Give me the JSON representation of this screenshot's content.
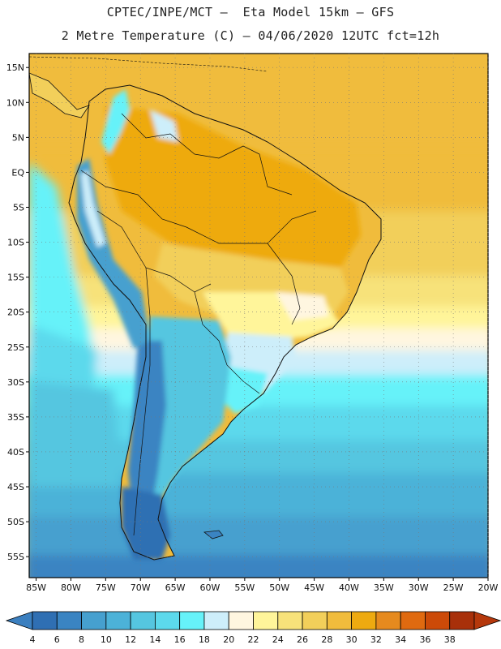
{
  "header": {
    "line1": "CPTEC/INPE/MCT –  Eta Model 15km – GFS",
    "line2": "2 Metre Temperature (C) – 04/06/2020 12UTC fct=12h"
  },
  "map": {
    "lon_range": [
      -86,
      -20
    ],
    "lat_range": [
      -58,
      17
    ],
    "lat_ticks": [
      {
        "v": 15,
        "label": "15N"
      },
      {
        "v": 10,
        "label": "10N"
      },
      {
        "v": 5,
        "label": "5N"
      },
      {
        "v": 0,
        "label": "EQ"
      },
      {
        "v": -5,
        "label": "5S"
      },
      {
        "v": -10,
        "label": "10S"
      },
      {
        "v": -15,
        "label": "15S"
      },
      {
        "v": -20,
        "label": "20S"
      },
      {
        "v": -25,
        "label": "25S"
      },
      {
        "v": -30,
        "label": "30S"
      },
      {
        "v": -35,
        "label": "35S"
      },
      {
        "v": -40,
        "label": "40S"
      },
      {
        "v": -45,
        "label": "45S"
      },
      {
        "v": -50,
        "label": "50S"
      },
      {
        "v": -55,
        "label": "55S"
      }
    ],
    "lon_ticks": [
      {
        "v": -85,
        "label": "85W"
      },
      {
        "v": -80,
        "label": "80W"
      },
      {
        "v": -75,
        "label": "75W"
      },
      {
        "v": -70,
        "label": "70W"
      },
      {
        "v": -65,
        "label": "65W"
      },
      {
        "v": -60,
        "label": "60W"
      },
      {
        "v": -55,
        "label": "55W"
      },
      {
        "v": -50,
        "label": "50W"
      },
      {
        "v": -45,
        "label": "45W"
      },
      {
        "v": -40,
        "label": "40W"
      },
      {
        "v": -35,
        "label": "35W"
      },
      {
        "v": -30,
        "label": "30W"
      },
      {
        "v": -25,
        "label": "25W"
      },
      {
        "v": -20,
        "label": "20W"
      }
    ]
  },
  "colorbar": {
    "labels": [
      "4",
      "6",
      "8",
      "10",
      "12",
      "14",
      "16",
      "18",
      "20",
      "22",
      "24",
      "26",
      "28",
      "30",
      "32",
      "34",
      "36",
      "38"
    ],
    "colors": [
      "#2f6fb3",
      "#3a84c2",
      "#46a0cf",
      "#4cb2d8",
      "#55c6e0",
      "#5cd9ec",
      "#66f2f9",
      "#cdeefa",
      "#fff6e0",
      "#fff59a",
      "#f7e27a",
      "#f2cf5a",
      "#f0bc3c",
      "#eeaa10",
      "#e68a1e",
      "#e06a10",
      "#cc4a08",
      "#a8300a"
    ],
    "low_color": "#3b7fbf",
    "high_color": "#b5380c"
  }
}
